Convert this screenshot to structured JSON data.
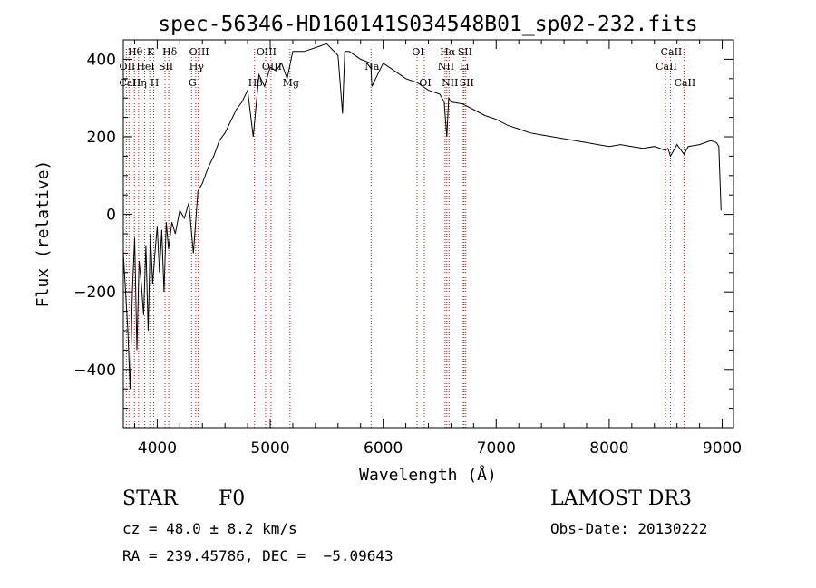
{
  "chart_data": {
    "type": "line",
    "title": "spec-56346-HD160141S034548B01_sp02-232.fits",
    "xlabel": "Wavelength (Å)",
    "ylabel": "Flux (relative)",
    "xlim": [
      3700,
      9100
    ],
    "ylim": [
      -550,
      450
    ],
    "xticks": [
      4000,
      5000,
      6000,
      7000,
      8000,
      9000
    ],
    "xtick_labels": [
      "4000",
      "5000",
      "6000",
      "7000",
      "8000",
      "9000"
    ],
    "yticks": [
      -400,
      -200,
      0,
      200,
      400
    ],
    "ytick_labels": [
      "−400",
      "−200",
      "0",
      "200",
      "400"
    ],
    "series": [
      {
        "name": "flux",
        "x": [
          3700,
          3720,
          3740,
          3760,
          3780,
          3800,
          3820,
          3840,
          3860,
          3880,
          3900,
          3920,
          3940,
          3960,
          3980,
          4000,
          4020,
          4040,
          4060,
          4080,
          4100,
          4130,
          4160,
          4200,
          4240,
          4280,
          4320,
          4360,
          4400,
          4450,
          4500,
          4550,
          4600,
          4650,
          4700,
          4750,
          4800,
          4850,
          4900,
          4950,
          5000,
          5050,
          5100,
          5150,
          5200,
          5300,
          5400,
          5500,
          5600,
          5640,
          5660,
          5700,
          5800,
          5890,
          5900,
          6000,
          6100,
          6200,
          6300,
          6400,
          6500,
          6540,
          6563,
          6580,
          6600,
          6700,
          6800,
          6900,
          7000,
          7100,
          7200,
          7300,
          7400,
          7500,
          7600,
          7700,
          7800,
          7900,
          8000,
          8100,
          8200,
          8300,
          8400,
          8498,
          8520,
          8542,
          8600,
          8662,
          8700,
          8800,
          8850,
          8900,
          8950,
          8970,
          8990
        ],
        "y": [
          -100,
          -200,
          -300,
          -450,
          -200,
          -60,
          -350,
          -120,
          -180,
          -260,
          -80,
          -300,
          -50,
          -180,
          -100,
          -30,
          -150,
          -40,
          -200,
          -20,
          -90,
          -20,
          -50,
          10,
          -10,
          30,
          -100,
          60,
          80,
          120,
          150,
          190,
          210,
          240,
          270,
          290,
          320,
          200,
          360,
          330,
          380,
          370,
          390,
          350,
          420,
          420,
          430,
          440,
          410,
          260,
          420,
          420,
          400,
          390,
          330,
          390,
          370,
          350,
          340,
          320,
          310,
          290,
          200,
          300,
          290,
          285,
          270,
          255,
          245,
          230,
          220,
          210,
          205,
          200,
          195,
          190,
          185,
          180,
          175,
          180,
          175,
          170,
          175,
          165,
          170,
          150,
          180,
          155,
          175,
          180,
          185,
          190,
          185,
          175,
          10
        ]
      }
    ],
    "line_markers": [
      {
        "label": "Hθ",
        "x": 3798,
        "row": 0
      },
      {
        "label": "OII",
        "x": 3727,
        "row": 1
      },
      {
        "label": "CaII",
        "x": 3750,
        "row": 2
      },
      {
        "label": "Hη",
        "x": 3835,
        "row": 2
      },
      {
        "label": "HeI",
        "x": 3889,
        "row": 1
      },
      {
        "label": "K",
        "x": 3934,
        "row": 0
      },
      {
        "label": "H",
        "x": 3969,
        "row": 2
      },
      {
        "label": "SII",
        "x": 4069,
        "row": 1
      },
      {
        "label": "Hδ",
        "x": 4102,
        "row": 0
      },
      {
        "label": "OIII",
        "x": 4363,
        "row": 0
      },
      {
        "label": "Hγ",
        "x": 4341,
        "row": 1
      },
      {
        "label": "G",
        "x": 4304,
        "row": 2
      },
      {
        "label": "OIII",
        "x": 4959,
        "row": 0
      },
      {
        "label": "OIII",
        "x": 5007,
        "row": 1
      },
      {
        "label": "Hβ",
        "x": 4861,
        "row": 2
      },
      {
        "label": "Mg",
        "x": 5175,
        "row": 2
      },
      {
        "label": "Na",
        "x": 5893,
        "row": 1
      },
      {
        "label": "OI",
        "x": 6300,
        "row": 0
      },
      {
        "label": "OI",
        "x": 6364,
        "row": 2
      },
      {
        "label": "Hα",
        "x": 6563,
        "row": 0
      },
      {
        "label": "NII",
        "x": 6548,
        "row": 1
      },
      {
        "label": "NII",
        "x": 6583,
        "row": 2
      },
      {
        "label": "SII",
        "x": 6716,
        "row": 0
      },
      {
        "label": "Li",
        "x": 6708,
        "row": 1
      },
      {
        "label": "SII",
        "x": 6731,
        "row": 2
      },
      {
        "label": "CaII",
        "x": 8542,
        "row": 0
      },
      {
        "label": "CaII",
        "x": 8498,
        "row": 1
      },
      {
        "label": "CaII",
        "x": 8662,
        "row": 2
      }
    ]
  },
  "info": {
    "object_class": "STAR",
    "subclass": "F0",
    "survey": "LAMOST DR3",
    "cz": "cz = 48.0 ± 8.2 km/s",
    "obs_date": "Obs-Date: 20130222",
    "coords": "RA = 239.45786, DEC =  −5.09643"
  },
  "colors": {
    "axis": "#000000",
    "spectrum": "#000000",
    "marker": "#b22222"
  }
}
